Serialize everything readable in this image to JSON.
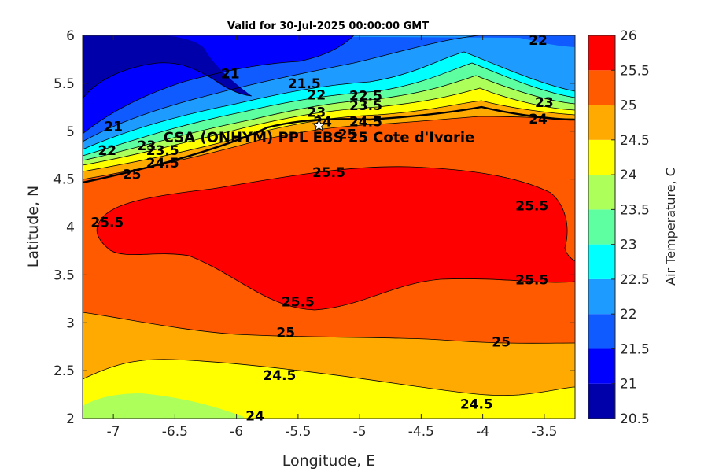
{
  "chart_data": {
    "type": "heatmap",
    "subtype": "filled-contour",
    "title": "Valid for 30-Jul-2025 00:00:00 GMT",
    "xlabel": "Longitude, E",
    "ylabel": "Latitude, N",
    "xlim": [
      -7.25,
      -3.25
    ],
    "ylim": [
      2,
      6
    ],
    "x_ticks": [
      -7,
      -6.5,
      -6,
      -5.5,
      -5,
      -4.5,
      -4,
      -3.5
    ],
    "x_tick_labels": [
      "-7",
      "-6.5",
      "-6",
      "-5.5",
      "-5",
      "-4.5",
      "-4",
      "-3.5"
    ],
    "y_ticks": [
      2,
      2.5,
      3,
      3.5,
      4,
      4.5,
      5,
      5.5,
      6
    ],
    "y_tick_labels": [
      "2",
      "2.5",
      "3",
      "3.5",
      "4",
      "4.5",
      "5",
      "5.5",
      "6"
    ],
    "colorbar": {
      "label": "Air Temperature, C",
      "levels": [
        20.5,
        21,
        21.5,
        22,
        22.5,
        23,
        23.5,
        24,
        24.5,
        25,
        25.5,
        26
      ],
      "level_labels": [
        "20.5",
        "21",
        "21.5",
        "22",
        "22.5",
        "23",
        "23.5",
        "24",
        "24.5",
        "25",
        "25.5",
        "26"
      ],
      "colors": [
        "#0000aa",
        "#0000ff",
        "#0f5bff",
        "#1e9bff",
        "#00ffff",
        "#5dffa0",
        "#adff5a",
        "#ffff00",
        "#ffaa00",
        "#ff5a00",
        "#ff0000",
        "#aa0000"
      ]
    },
    "contour_labels": [
      {
        "text": "22",
        "lon": -3.55,
        "lat": 5.95
      },
      {
        "text": "21",
        "lon": -6.05,
        "lat": 5.6
      },
      {
        "text": "21.5",
        "lon": -5.45,
        "lat": 5.5
      },
      {
        "text": "22",
        "lon": -5.35,
        "lat": 5.38
      },
      {
        "text": "22.5",
        "lon": -4.95,
        "lat": 5.37
      },
      {
        "text": "23",
        "lon": -5.35,
        "lat": 5.2
      },
      {
        "text": "23.5",
        "lon": -4.95,
        "lat": 5.27
      },
      {
        "text": "24",
        "lon": -5.3,
        "lat": 5.1
      },
      {
        "text": "24.5",
        "lon": -4.95,
        "lat": 5.1
      },
      {
        "text": "25",
        "lon": -5.1,
        "lat": 4.97
      },
      {
        "text": "23",
        "lon": -3.5,
        "lat": 5.3
      },
      {
        "text": "24",
        "lon": -3.55,
        "lat": 5.13
      },
      {
        "text": "21",
        "lon": -7.0,
        "lat": 5.05
      },
      {
        "text": "22",
        "lon": -7.05,
        "lat": 4.8
      },
      {
        "text": "23",
        "lon": -6.73,
        "lat": 4.85
      },
      {
        "text": "23.5",
        "lon": -6.6,
        "lat": 4.8
      },
      {
        "text": "24.5",
        "lon": -6.6,
        "lat": 4.67
      },
      {
        "text": "25",
        "lon": -6.85,
        "lat": 4.55
      },
      {
        "text": "25.5",
        "lon": -5.25,
        "lat": 4.57
      },
      {
        "text": "25.5",
        "lon": -7.05,
        "lat": 4.05
      },
      {
        "text": "25.5",
        "lon": -3.6,
        "lat": 4.22
      },
      {
        "text": "25.5",
        "lon": -5.5,
        "lat": 3.22
      },
      {
        "text": "25.5",
        "lon": -3.6,
        "lat": 3.45
      },
      {
        "text": "25",
        "lon": -5.6,
        "lat": 2.9
      },
      {
        "text": "25",
        "lon": -3.85,
        "lat": 2.8
      },
      {
        "text": "24.5",
        "lon": -5.65,
        "lat": 2.45
      },
      {
        "text": "24.5",
        "lon": -4.05,
        "lat": 2.15
      },
      {
        "text": "24",
        "lon": -5.85,
        "lat": 2.03
      }
    ],
    "site": {
      "label": "CSA (ONHYM) PPL EBS 25 Cote d'Ivorie",
      "lon": -5.33,
      "lat": 5.06,
      "marker": "white-star"
    }
  }
}
